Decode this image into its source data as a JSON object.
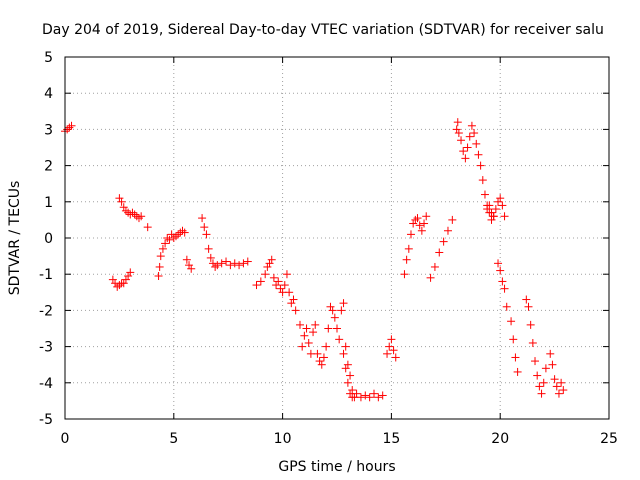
{
  "chart_data": {
    "type": "scatter",
    "title": "Day 204 of 2019, Sidereal Day-to-day VTEC variation (SDTVAR) for receiver salu",
    "xlabel": "GPS time / hours",
    "ylabel": "SDTVAR / TECUs",
    "xlim": [
      0,
      25
    ],
    "ylim": [
      -5,
      5
    ],
    "xticks": [
      "0",
      "5",
      "10",
      "15",
      "20",
      "25"
    ],
    "yticks": [
      "-5",
      "-4",
      "-3",
      "-2",
      "-1",
      "0",
      "1",
      "2",
      "3",
      "4",
      "5"
    ],
    "grid": true,
    "marker": "+",
    "color": "#ff0000",
    "series": [
      {
        "name": "SDTVAR",
        "x": [
          0.0,
          0.1,
          0.2,
          0.3,
          2.2,
          2.3,
          2.4,
          2.5,
          2.6,
          2.7,
          2.8,
          2.9,
          3.0,
          2.5,
          2.6,
          2.7,
          2.8,
          2.9,
          3.0,
          3.1,
          3.2,
          3.3,
          3.4,
          3.5,
          3.8,
          4.3,
          4.35,
          4.4,
          4.5,
          4.6,
          4.7,
          4.8,
          4.9,
          5.0,
          5.1,
          5.2,
          5.3,
          5.4,
          5.5,
          5.6,
          5.7,
          5.8,
          6.3,
          6.4,
          6.5,
          6.6,
          6.7,
          6.8,
          6.9,
          7.0,
          7.2,
          7.4,
          7.6,
          7.8,
          8.0,
          8.2,
          8.4,
          8.8,
          9.0,
          9.2,
          9.3,
          9.4,
          9.5,
          9.6,
          9.7,
          9.8,
          9.9,
          10.0,
          10.1,
          10.2,
          10.3,
          10.4,
          10.5,
          10.6,
          10.8,
          10.9,
          11.0,
          11.1,
          11.2,
          11.3,
          11.4,
          11.5,
          11.6,
          11.7,
          11.8,
          11.9,
          12.0,
          12.1,
          12.2,
          12.3,
          12.4,
          12.5,
          12.6,
          12.7,
          12.8,
          12.9,
          13.0,
          13.1,
          13.2,
          13.3,
          12.8,
          12.9,
          13.0,
          13.1,
          13.2,
          13.4,
          13.6,
          13.8,
          14.0,
          14.2,
          14.4,
          14.6,
          14.8,
          14.9,
          15.0,
          15.1,
          15.2,
          15.6,
          15.7,
          15.8,
          15.9,
          16.0,
          16.1,
          16.2,
          16.3,
          16.4,
          16.5,
          16.6,
          16.8,
          17.0,
          17.2,
          17.4,
          17.6,
          17.8,
          18.0,
          18.05,
          18.1,
          18.2,
          18.3,
          18.4,
          18.5,
          18.6,
          18.7,
          18.8,
          18.9,
          19.0,
          19.1,
          19.2,
          19.3,
          19.4,
          19.5,
          19.6,
          19.7,
          19.8,
          19.9,
          20.0,
          20.1,
          20.2,
          19.4,
          19.5,
          19.6,
          19.7,
          19.9,
          20.0,
          20.1,
          20.2,
          20.3,
          20.5,
          20.6,
          20.7,
          20.8,
          21.2,
          21.3,
          21.4,
          21.5,
          21.6,
          21.7,
          21.8,
          21.9,
          22.0,
          22.1,
          22.3,
          22.4,
          22.5,
          22.6,
          22.7,
          22.8,
          22.9
        ],
        "y": [
          2.95,
          3.0,
          3.05,
          3.1,
          -1.15,
          -1.25,
          -1.35,
          -1.3,
          -1.25,
          -1.25,
          -1.15,
          -1.05,
          -0.95,
          1.1,
          1.0,
          0.85,
          0.75,
          0.7,
          0.65,
          0.7,
          0.65,
          0.6,
          0.55,
          0.6,
          0.3,
          -1.05,
          -0.8,
          -0.5,
          -0.3,
          -0.15,
          0.0,
          -0.05,
          0.1,
          0.0,
          0.05,
          0.1,
          0.15,
          0.2,
          0.15,
          -0.6,
          -0.75,
          -0.85,
          0.55,
          0.3,
          0.1,
          -0.3,
          -0.55,
          -0.7,
          -0.8,
          -0.75,
          -0.7,
          -0.65,
          -0.75,
          -0.7,
          -0.75,
          -0.7,
          -0.65,
          -1.3,
          -1.2,
          -1.0,
          -0.8,
          -0.7,
          -0.6,
          -1.1,
          -1.3,
          -1.2,
          -1.4,
          -1.5,
          -1.3,
          -1.0,
          -1.5,
          -1.8,
          -1.7,
          -2.0,
          -2.4,
          -3.0,
          -2.7,
          -2.5,
          -2.9,
          -3.2,
          -2.6,
          -2.4,
          -3.2,
          -3.4,
          -3.5,
          -3.3,
          -3.0,
          -2.5,
          -1.9,
          -2.0,
          -2.2,
          -2.5,
          -2.8,
          -2.0,
          -1.8,
          -3.0,
          -3.5,
          -3.8,
          -4.2,
          -4.4,
          -3.2,
          -3.6,
          -4.0,
          -4.3,
          -4.4,
          -4.3,
          -4.4,
          -4.35,
          -4.4,
          -4.3,
          -4.4,
          -4.35,
          -3.2,
          -3.0,
          -2.8,
          -3.1,
          -3.3,
          -1.0,
          -0.6,
          -0.3,
          0.1,
          0.4,
          0.5,
          0.55,
          0.35,
          0.2,
          0.4,
          0.6,
          -1.1,
          -0.8,
          -0.4,
          -0.1,
          0.2,
          0.5,
          3.0,
          3.2,
          2.9,
          2.7,
          2.4,
          2.2,
          2.5,
          2.8,
          3.1,
          2.9,
          2.6,
          2.3,
          2.0,
          1.6,
          1.2,
          0.9,
          0.7,
          0.5,
          0.6,
          0.8,
          1.0,
          1.1,
          0.9,
          0.6,
          0.8,
          0.9,
          0.7,
          0.6,
          -0.7,
          -0.9,
          -1.2,
          -1.4,
          -1.9,
          -2.3,
          -2.8,
          -3.3,
          -3.7,
          -1.7,
          -1.9,
          -2.4,
          -2.9,
          -3.4,
          -3.8,
          -4.1,
          -4.3,
          -4.0,
          -3.6,
          -3.2,
          -3.5,
          -3.9,
          -4.1,
          -4.3,
          -4.0,
          -4.2
        ]
      }
    ]
  }
}
